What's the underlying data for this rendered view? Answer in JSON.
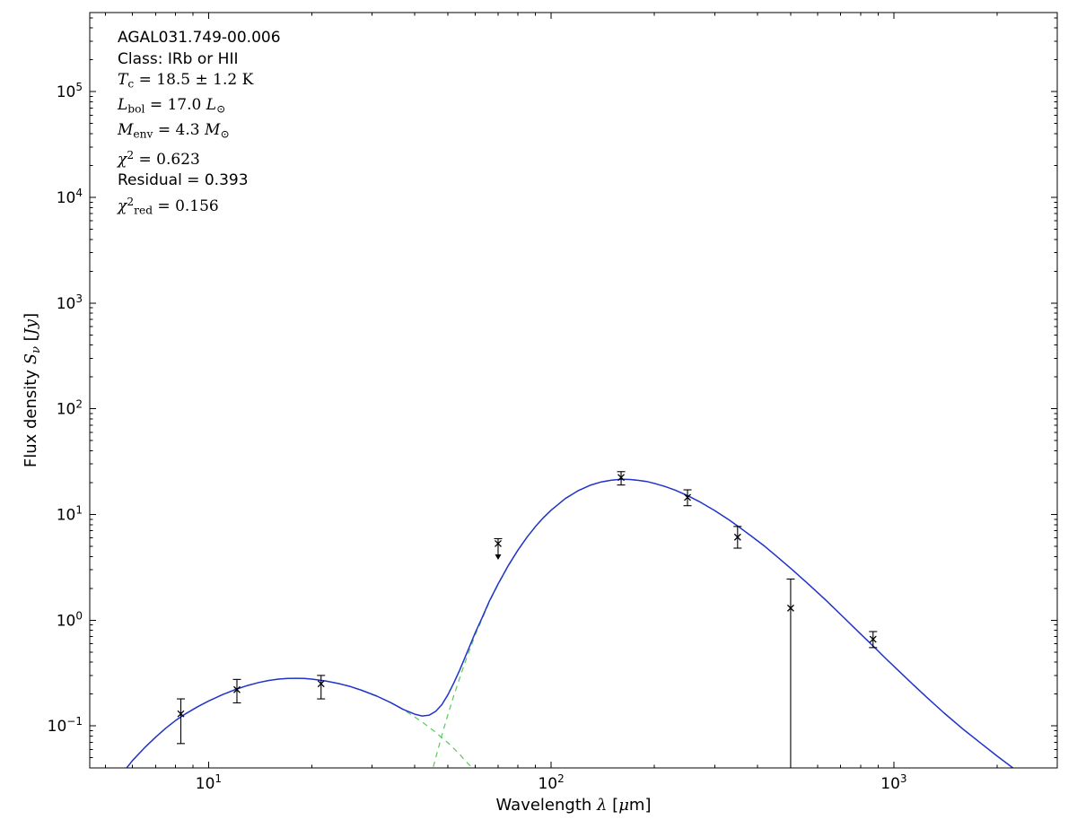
{
  "annotation": {
    "lines": [
      {
        "parts": [
          {
            "t": "AGAL031.749-00.006",
            "s": "sans"
          }
        ]
      },
      {
        "parts": [
          {
            "t": "Class: IRb or HII",
            "s": "sans"
          }
        ]
      },
      {
        "parts": [
          {
            "t": "T",
            "s": "it"
          },
          {
            "t": "c",
            "s": "sub"
          },
          {
            "t": " = 18.5 ± 1.2 K",
            "s": "rm"
          }
        ]
      },
      {
        "parts": [
          {
            "t": "L",
            "s": "it"
          },
          {
            "t": "bol",
            "s": "sub"
          },
          {
            "t": " = 17.0 ",
            "s": "rm"
          },
          {
            "t": "L",
            "s": "it"
          },
          {
            "t": "⊙",
            "s": "sub"
          }
        ]
      },
      {
        "parts": [
          {
            "t": "M",
            "s": "it"
          },
          {
            "t": "env",
            "s": "sub"
          },
          {
            "t": " = 4.3 ",
            "s": "rm"
          },
          {
            "t": "M",
            "s": "it"
          },
          {
            "t": "⊙",
            "s": "sub"
          }
        ]
      },
      {
        "parts": [
          {
            "t": "χ",
            "s": "it"
          },
          {
            "t": "2",
            "s": "sup"
          },
          {
            "t": " = 0.623",
            "s": "rm"
          }
        ]
      },
      {
        "parts": [
          {
            "t": "Residual = 0.393",
            "s": "sans"
          }
        ]
      },
      {
        "parts": [
          {
            "t": "χ",
            "s": "it"
          },
          {
            "t": "2",
            "s": "sup"
          },
          {
            "t": "red",
            "s": "sub"
          },
          {
            "t": " = 0.156",
            "s": "rm"
          }
        ]
      }
    ]
  },
  "labels": {
    "xlabel": [
      {
        "t": "Wavelength ",
        "s": "sans"
      },
      {
        "t": "λ",
        "s": "it"
      },
      {
        "t": " [",
        "s": "sans"
      },
      {
        "t": "μ",
        "s": "it"
      },
      {
        "t": "m",
        "s": "sans"
      },
      {
        "t": "]",
        "s": "sans"
      }
    ],
    "ylabel": [
      {
        "t": "Flux density ",
        "s": "sans"
      },
      {
        "t": "S",
        "s": "it"
      },
      {
        "t": "ν",
        "s": "subit"
      },
      {
        "t": " [",
        "s": "sans"
      },
      {
        "t": "Jy",
        "s": "it"
      },
      {
        "t": "]",
        "s": "sans"
      }
    ]
  },
  "chart_data": {
    "type": "line",
    "title": "",
    "xlabel_text": "Wavelength λ [μm]",
    "ylabel_text": "Flux density Sν [Jy]",
    "xscale": "log",
    "yscale": "log",
    "grid": false,
    "xlim": [
      4.5,
      3000
    ],
    "ylim": [
      0.04,
      560000
    ],
    "tick_base": "10",
    "xtick_exps": [
      1,
      2,
      3
    ],
    "ytick_exps": [
      -1,
      0,
      1,
      2,
      3,
      4,
      5
    ],
    "colors": {
      "model": "#2233cc",
      "components": "#55cc55",
      "data": "#000000",
      "frame": "#000000"
    },
    "series": [
      {
        "name": "warm-component",
        "color": "#55cc55",
        "dash": true,
        "width": 1.2,
        "points": [
          [
            5.5,
            0.033
          ],
          [
            6,
            0.047
          ],
          [
            6.5,
            0.062
          ],
          [
            7,
            0.078
          ],
          [
            7.5,
            0.095
          ],
          [
            8,
            0.112
          ],
          [
            8.6,
            0.131
          ],
          [
            9.3,
            0.152
          ],
          [
            10,
            0.172
          ],
          [
            11,
            0.198
          ],
          [
            12,
            0.221
          ],
          [
            13,
            0.241
          ],
          [
            14,
            0.257
          ],
          [
            15,
            0.269
          ],
          [
            16,
            0.277
          ],
          [
            17,
            0.281
          ],
          [
            18,
            0.282
          ],
          [
            19,
            0.281
          ],
          [
            20,
            0.277
          ],
          [
            22,
            0.266
          ],
          [
            24,
            0.251
          ],
          [
            26,
            0.235
          ],
          [
            28,
            0.217
          ],
          [
            31,
            0.191
          ],
          [
            34,
            0.166
          ],
          [
            37,
            0.143
          ],
          [
            40,
            0.121
          ],
          [
            42,
            0.109
          ],
          [
            44,
            0.097
          ],
          [
            46,
            0.087
          ],
          [
            48,
            0.077
          ],
          [
            50,
            0.069
          ],
          [
            52,
            0.061
          ],
          [
            54,
            0.054
          ],
          [
            56,
            0.047
          ],
          [
            58,
            0.042
          ],
          [
            60,
            0.037
          ],
          [
            63,
            0.031
          ],
          [
            66,
            0.026
          ],
          [
            70,
            0.02
          ],
          [
            75,
            0.015
          ],
          [
            80,
            0.011
          ],
          [
            86,
            0.0075
          ]
        ]
      },
      {
        "name": "cold-component",
        "color": "#55cc55",
        "dash": true,
        "width": 1.2,
        "points": [
          [
            40,
            0.0077
          ],
          [
            42,
            0.015
          ],
          [
            44,
            0.0285
          ],
          [
            46,
            0.0496
          ],
          [
            48,
            0.0816
          ],
          [
            50,
            0.129
          ],
          [
            52,
            0.194
          ],
          [
            54,
            0.28
          ],
          [
            56,
            0.395
          ],
          [
            58,
            0.538
          ],
          [
            60,
            0.72
          ],
          [
            63,
            1.04
          ],
          [
            66,
            1.49
          ],
          [
            70,
            2.18
          ],
          [
            75,
            3.27
          ],
          [
            80,
            4.59
          ],
          [
            85,
            6.08
          ],
          [
            90,
            7.69
          ],
          [
            95,
            9.34
          ],
          [
            100,
            10.97
          ],
          [
            110,
            14.15
          ],
          [
            120,
            16.8
          ],
          [
            130,
            18.9
          ],
          [
            140,
            20.3
          ],
          [
            150,
            21.1
          ],
          [
            160,
            21.5
          ],
          [
            170,
            21.4
          ],
          [
            180,
            21.0
          ],
          [
            190,
            20.5
          ],
          [
            200,
            19.7
          ],
          [
            215,
            18.4
          ],
          [
            230,
            17.0
          ],
          [
            250,
            15.1
          ],
          [
            270,
            13.3
          ],
          [
            300,
            10.9
          ],
          [
            330,
            8.9
          ],
          [
            350,
            7.8
          ],
          [
            390,
            6.0
          ],
          [
            420,
            5.0
          ],
          [
            450,
            4.14
          ],
          [
            500,
            3.1
          ],
          [
            560,
            2.23
          ],
          [
            630,
            1.57
          ],
          [
            700,
            1.13
          ],
          [
            800,
            0.74
          ],
          [
            870,
            0.57
          ],
          [
            950,
            0.43
          ],
          [
            1040,
            0.325
          ],
          [
            1140,
            0.245
          ],
          [
            1250,
            0.185
          ],
          [
            1400,
            0.133
          ],
          [
            1600,
            0.092
          ],
          [
            1800,
            0.068
          ],
          [
            2000,
            0.052
          ],
          [
            2300,
            0.037
          ],
          [
            2600,
            0.027
          ],
          [
            3000,
            0.019
          ]
        ]
      },
      {
        "name": "total-model",
        "color": "#2233cc",
        "dash": false,
        "width": 1.5,
        "points": [
          [
            5.5,
            0.033
          ],
          [
            6,
            0.047
          ],
          [
            6.5,
            0.062
          ],
          [
            7,
            0.078
          ],
          [
            7.5,
            0.095
          ],
          [
            8,
            0.112
          ],
          [
            8.6,
            0.131
          ],
          [
            9.3,
            0.152
          ],
          [
            10,
            0.172
          ],
          [
            11,
            0.198
          ],
          [
            12,
            0.221
          ],
          [
            13,
            0.241
          ],
          [
            14,
            0.257
          ],
          [
            15,
            0.269
          ],
          [
            16,
            0.277
          ],
          [
            17,
            0.281
          ],
          [
            18,
            0.282
          ],
          [
            19,
            0.281
          ],
          [
            20,
            0.277
          ],
          [
            22,
            0.266
          ],
          [
            24,
            0.251
          ],
          [
            26,
            0.235
          ],
          [
            28,
            0.217
          ],
          [
            31,
            0.191
          ],
          [
            34,
            0.166
          ],
          [
            37,
            0.143
          ],
          [
            40,
            0.129
          ],
          [
            42,
            0.124
          ],
          [
            44,
            0.126
          ],
          [
            46,
            0.137
          ],
          [
            48,
            0.159
          ],
          [
            50,
            0.198
          ],
          [
            52,
            0.255
          ],
          [
            54,
            0.334
          ],
          [
            56,
            0.442
          ],
          [
            58,
            0.58
          ],
          [
            60,
            0.757
          ],
          [
            63,
            1.07
          ],
          [
            66,
            1.51
          ],
          [
            70,
            2.2
          ],
          [
            75,
            3.29
          ],
          [
            80,
            4.6
          ],
          [
            85,
            6.09
          ],
          [
            90,
            7.7
          ],
          [
            95,
            9.35
          ],
          [
            100,
            10.98
          ],
          [
            110,
            14.16
          ],
          [
            120,
            16.81
          ],
          [
            130,
            18.91
          ],
          [
            140,
            20.3
          ],
          [
            150,
            21.1
          ],
          [
            160,
            21.5
          ],
          [
            170,
            21.4
          ],
          [
            180,
            21.0
          ],
          [
            190,
            20.5
          ],
          [
            200,
            19.7
          ],
          [
            215,
            18.4
          ],
          [
            230,
            17.0
          ],
          [
            250,
            15.1
          ],
          [
            270,
            13.3
          ],
          [
            300,
            10.9
          ],
          [
            330,
            8.9
          ],
          [
            350,
            7.8
          ],
          [
            390,
            6.0
          ],
          [
            420,
            5.0
          ],
          [
            450,
            4.14
          ],
          [
            500,
            3.1
          ],
          [
            560,
            2.23
          ],
          [
            630,
            1.57
          ],
          [
            700,
            1.13
          ],
          [
            800,
            0.74
          ],
          [
            870,
            0.57
          ],
          [
            950,
            0.43
          ],
          [
            1040,
            0.325
          ],
          [
            1140,
            0.245
          ],
          [
            1250,
            0.185
          ],
          [
            1400,
            0.133
          ],
          [
            1600,
            0.092
          ],
          [
            1800,
            0.068
          ],
          [
            2000,
            0.052
          ],
          [
            2300,
            0.037
          ],
          [
            2600,
            0.027
          ],
          [
            3000,
            0.019
          ]
        ]
      }
    ],
    "points": [
      {
        "lam": 8.3,
        "flux": 0.13,
        "err_lo": 0.062,
        "err_hi": 0.05,
        "upper_limit": false
      },
      {
        "lam": 12.1,
        "flux": 0.22,
        "err_lo": 0.055,
        "err_hi": 0.055,
        "upper_limit": false
      },
      {
        "lam": 21.3,
        "flux": 0.25,
        "err_lo": 0.07,
        "err_hi": 0.05,
        "upper_limit": false
      },
      {
        "lam": 70,
        "flux": 5.3,
        "err_lo": 0,
        "err_hi": 0.6,
        "upper_limit": true
      },
      {
        "lam": 160,
        "flux": 22.4,
        "err_lo": 3.4,
        "err_hi": 3.0,
        "upper_limit": false
      },
      {
        "lam": 250,
        "flux": 14.5,
        "err_lo": 2.4,
        "err_hi": 2.6,
        "upper_limit": false
      },
      {
        "lam": 350,
        "flux": 6.1,
        "err_lo": 1.3,
        "err_hi": 1.6,
        "upper_limit": false
      },
      {
        "lam": 500,
        "flux": 1.3,
        "err_lo": 1.27,
        "err_hi": 1.15,
        "upper_limit": false
      },
      {
        "lam": 870,
        "flux": 0.66,
        "err_lo": 0.11,
        "err_hi": 0.12,
        "upper_limit": false
      }
    ]
  }
}
